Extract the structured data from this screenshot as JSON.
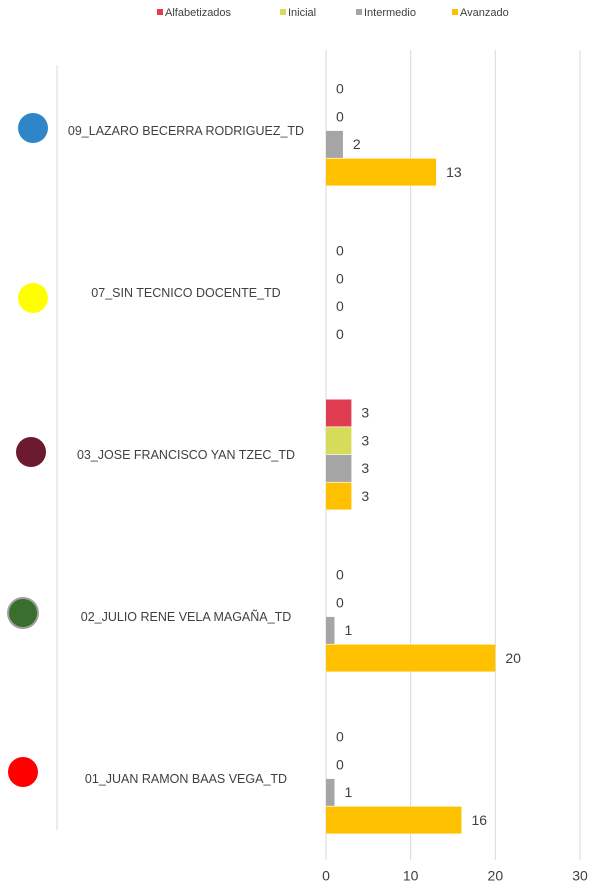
{
  "chart_data": {
    "type": "bar",
    "orientation": "horizontal",
    "categories": [
      "09_LAZARO BECERRA RODRIGUEZ_TD",
      "07_SIN TECNICO DOCENTE_TD",
      "03_JOSE FRANCISCO YAN TZEC_TD",
      "02_JULIO RENE VELA MAGAÑA_TD",
      "01_JUAN RAMON BAAS VEGA_TD"
    ],
    "series": [
      {
        "name": "Alfabetizados",
        "color": "#e03c52",
        "values": [
          0,
          0,
          3,
          0,
          0
        ]
      },
      {
        "name": "Inicial",
        "color": "#d6dc5a",
        "values": [
          0,
          0,
          3,
          0,
          0
        ]
      },
      {
        "name": "Intermedio",
        "color": "#a5a5a5",
        "values": [
          2,
          0,
          3,
          1,
          1
        ]
      },
      {
        "name": "Avanzado",
        "color": "#ffc000",
        "values": [
          13,
          0,
          3,
          20,
          16
        ]
      }
    ],
    "xlim": [
      0,
      30
    ],
    "xticks": [
      0,
      10,
      20,
      30
    ],
    "grid": true,
    "legend": "top"
  }
}
